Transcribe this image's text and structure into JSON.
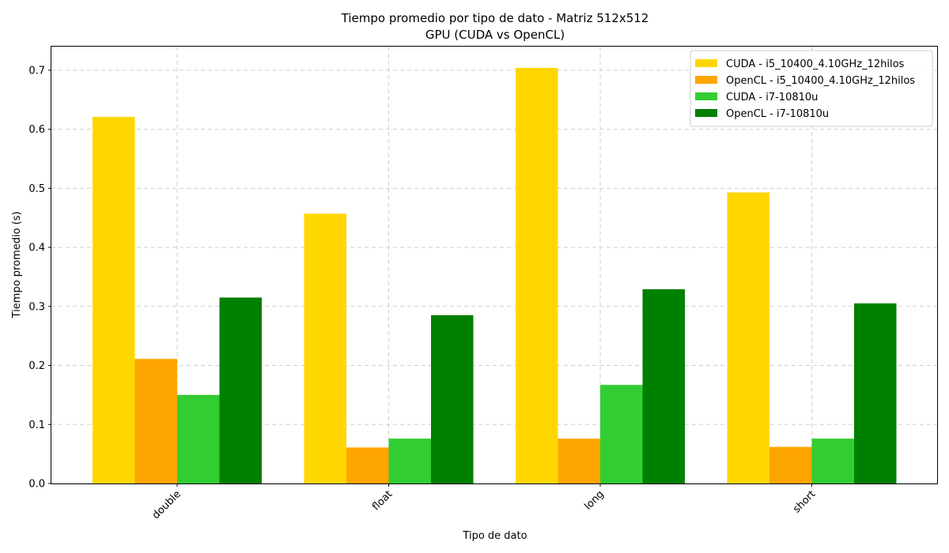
{
  "chart_data": {
    "type": "bar",
    "title": "Tiempo promedio por tipo de dato - Matriz 512x512",
    "subtitle": "GPU (CUDA vs OpenCL)",
    "xlabel": "Tipo de dato",
    "ylabel": "Tiempo promedio (s)",
    "categories": [
      "double",
      "float",
      "long",
      "short"
    ],
    "ylim": [
      0,
      0.74
    ],
    "yticks": [
      0.0,
      0.1,
      0.2,
      0.3,
      0.4,
      0.5,
      0.6,
      0.7
    ],
    "ytick_labels": [
      "0.0",
      "0.1",
      "0.2",
      "0.3",
      "0.4",
      "0.5",
      "0.6",
      "0.7"
    ],
    "grid": true,
    "legend_position": "top-right",
    "series": [
      {
        "name": "CUDA - i5_10400_4.10GHz_12hilos",
        "color": "#FFD700",
        "values": [
          0.621,
          0.457,
          0.704,
          0.493
        ]
      },
      {
        "name": "OpenCL - i5_10400_4.10GHz_12hilos",
        "color": "#FFA500",
        "values": [
          0.211,
          0.061,
          0.076,
          0.062
        ]
      },
      {
        "name": "CUDA - i7-10810u",
        "color": "#32CD32",
        "values": [
          0.15,
          0.076,
          0.167,
          0.076
        ]
      },
      {
        "name": "OpenCL - i7-10810u",
        "color": "#008000",
        "values": [
          0.315,
          0.285,
          0.329,
          0.305
        ]
      }
    ]
  }
}
